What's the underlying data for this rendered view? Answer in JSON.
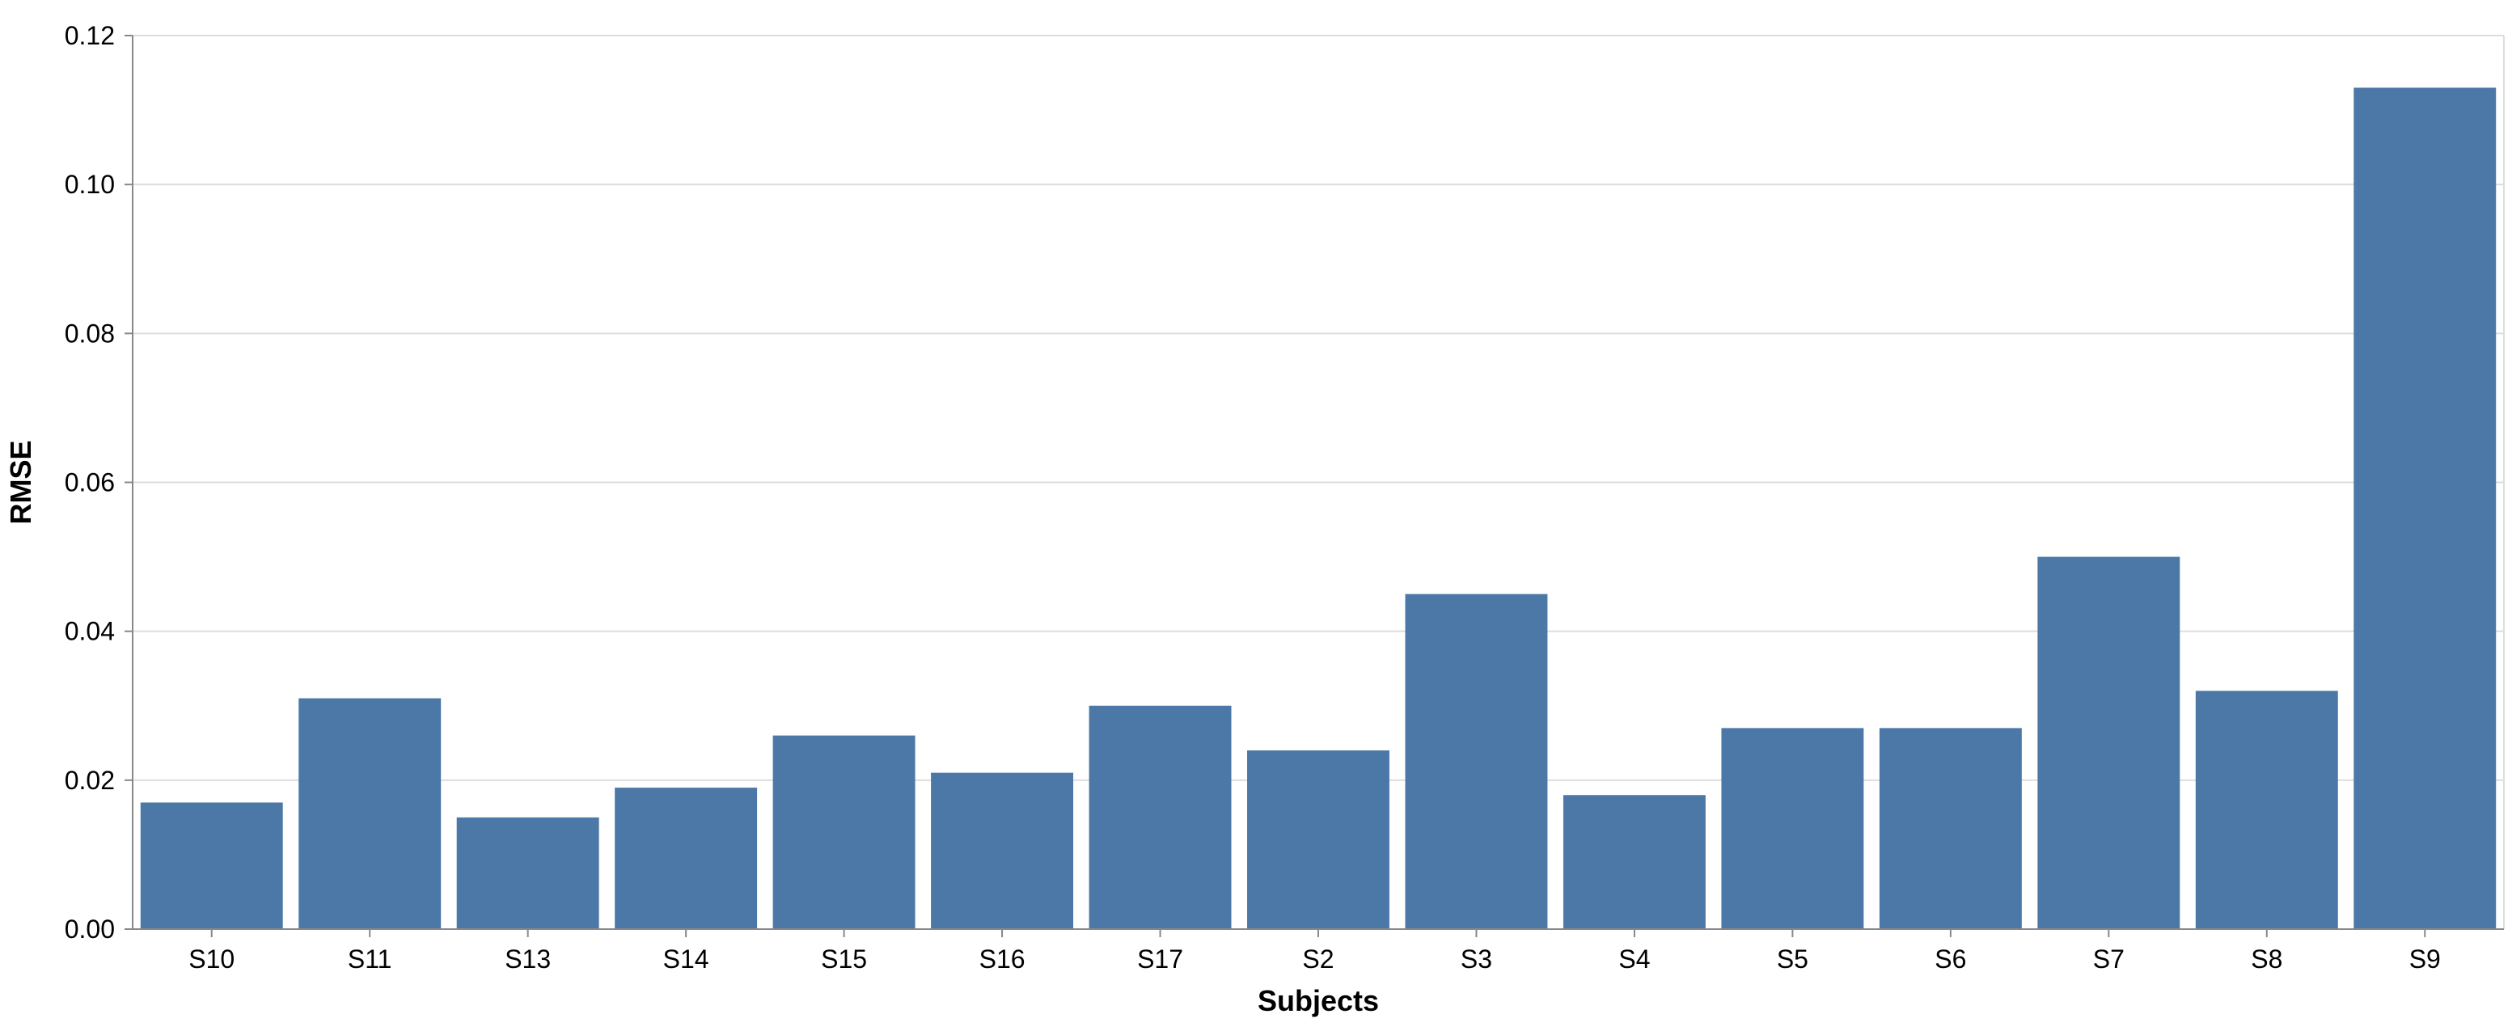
{
  "chart_data": {
    "type": "bar",
    "title": "",
    "xlabel": "Subjects",
    "ylabel": "RMSE",
    "categories": [
      "S10",
      "S11",
      "S13",
      "S14",
      "S15",
      "S16",
      "S17",
      "S2",
      "S3",
      "S4",
      "S5",
      "S6",
      "S7",
      "S8",
      "S9"
    ],
    "values": [
      0.017,
      0.031,
      0.015,
      0.019,
      0.026,
      0.021,
      0.03,
      0.024,
      0.045,
      0.018,
      0.027,
      0.027,
      0.05,
      0.032,
      0.113
    ],
    "ylim": [
      0,
      0.12
    ],
    "yticks": [
      "0.00",
      "0.02",
      "0.04",
      "0.06",
      "0.08",
      "0.10",
      "0.12"
    ],
    "grid": true,
    "legend": "none",
    "bar_color": "#4c78a8",
    "grid_color": "#dddddd",
    "axis_color": "#888888"
  }
}
